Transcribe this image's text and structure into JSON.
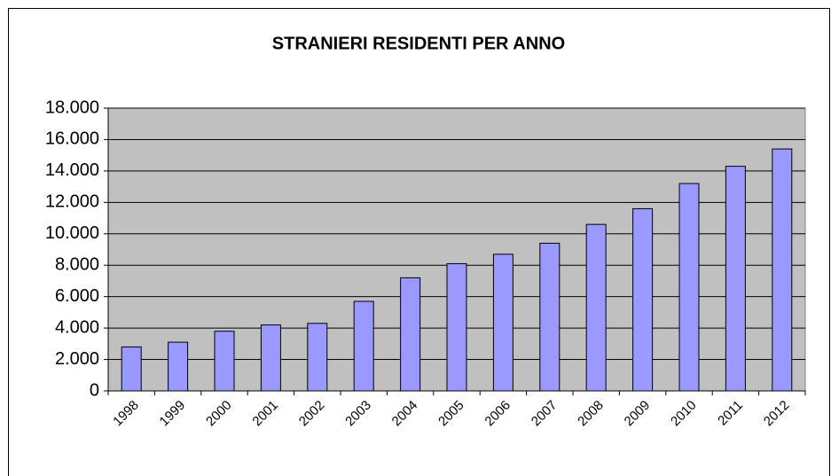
{
  "chart_data": {
    "type": "bar",
    "title": "STRANIERI RESIDENTI PER ANNO",
    "categories": [
      "1998",
      "1999",
      "2000",
      "2001",
      "2002",
      "2003",
      "2004",
      "2005",
      "2006",
      "2007",
      "2008",
      "2009",
      "2010",
      "2011",
      "2012"
    ],
    "values": [
      2800,
      3100,
      3800,
      4200,
      4300,
      5700,
      7200,
      8100,
      8700,
      9400,
      10600,
      11600,
      13200,
      14300,
      15400
    ],
    "color": "#9999ff",
    "ylim": [
      0,
      18000
    ],
    "yticks": [
      0,
      {
        "value": 2000,
        "label": "2.000"
      },
      {
        "value": 4000,
        "label": "4.000"
      },
      {
        "value": 6000,
        "label": "6.000"
      },
      {
        "value": 8000,
        "label": "8.000"
      },
      {
        "value": 10000,
        "label": "10.000"
      },
      {
        "value": 12000,
        "label": "12.000"
      },
      {
        "value": 14000,
        "label": "14.000"
      },
      {
        "value": 16000,
        "label": "16.000"
      },
      {
        "value": 18000,
        "label": "18.000"
      }
    ],
    "grid": true
  }
}
